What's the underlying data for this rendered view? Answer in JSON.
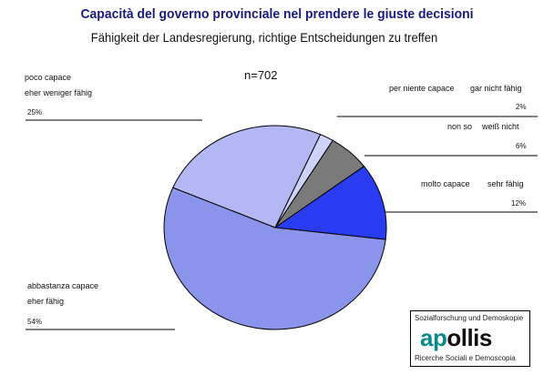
{
  "chart_data": {
    "type": "pie",
    "title": "Capacità del governo provinciale nel prendere le giuste decisioni",
    "subtitle": "Fähigkeit der Landesregierung, richtige Entscheidungen zu treffen",
    "note": "n=702",
    "slices": [
      {
        "label_it": "per niente capace",
        "label_de": "gar nicht fähig",
        "value": 2,
        "value_text": "2%",
        "color": "#cdd3f8"
      },
      {
        "label_it": "non so",
        "label_de": "weiß nicht",
        "value": 6,
        "value_text": "6%",
        "color": "#7a7a7a"
      },
      {
        "label_it": "molto capace",
        "label_de": "sehr fähig",
        "value": 12,
        "value_text": "12%",
        "color": "#2a3cf2"
      },
      {
        "label_it": "abbastanza capace",
        "label_de": "eher fähig",
        "value": 54,
        "value_text": "54%",
        "color": "#8a94ea"
      },
      {
        "label_it": "poco capace",
        "label_de": "eher weniger fähig",
        "value": 25,
        "value_text": "25%",
        "color": "#b3b7f3"
      }
    ]
  },
  "logo": {
    "top_text": "Sozialforschung und Demoskopie",
    "brand_a": "ap",
    "brand_b": "ollis",
    "bottom_text": "Ricerche Sociali e Demoscopia"
  }
}
